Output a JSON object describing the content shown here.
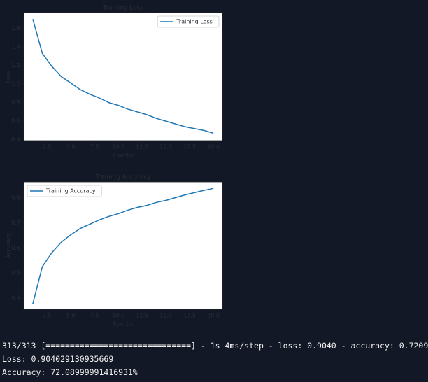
{
  "chart_data": [
    {
      "type": "line",
      "title": "Training Loss",
      "x_label": "Epochs",
      "y_label": "Loss",
      "x": [
        1,
        2,
        3,
        4,
        5,
        6,
        7,
        8,
        9,
        10,
        11,
        12,
        13,
        14,
        15,
        16,
        17,
        18,
        19,
        20
      ],
      "series": [
        {
          "name": "Training Loss",
          "color": "#1f77b4",
          "values": [
            1.7,
            1.33,
            1.19,
            1.08,
            1.01,
            0.94,
            0.89,
            0.85,
            0.8,
            0.77,
            0.73,
            0.7,
            0.67,
            0.63,
            0.6,
            0.57,
            0.54,
            0.52,
            0.5,
            0.47
          ]
        }
      ],
      "xlim": [
        0.05,
        20.95
      ],
      "ylim": [
        0.39,
        1.77
      ],
      "xticks": [
        2.5,
        {
          "value": 5,
          "label": "5.0"
        },
        7.5,
        {
          "value": 10,
          "label": "10.0"
        },
        12.5,
        {
          "value": 15,
          "label": "15.0"
        },
        17.5,
        {
          "value": 20,
          "label": "20.0"
        }
      ],
      "yticks": [
        0.4,
        0.6,
        0.8,
        {
          "value": 1,
          "label": "1.0"
        },
        1.2,
        1.4,
        1.6
      ],
      "legend": "upper right"
    },
    {
      "type": "line",
      "title": "Training Accuracy",
      "x_label": "Epochs",
      "y_label": "Accuracy",
      "x": [
        1,
        2,
        3,
        4,
        5,
        6,
        7,
        8,
        9,
        10,
        11,
        12,
        13,
        14,
        15,
        16,
        17,
        18,
        19,
        20
      ],
      "series": [
        {
          "name": "Training Accuracy",
          "color": "#1f77b4",
          "values": [
            0.377,
            0.525,
            0.581,
            0.623,
            0.653,
            0.678,
            0.695,
            0.712,
            0.726,
            0.737,
            0.751,
            0.762,
            0.77,
            0.782,
            0.79,
            0.801,
            0.812,
            0.821,
            0.83,
            0.838
          ]
        }
      ],
      "xlim": [
        0.05,
        20.95
      ],
      "ylim": [
        0.355,
        0.864
      ],
      "xticks": [
        2.5,
        {
          "value": 5,
          "label": "5.0"
        },
        7.5,
        {
          "value": 10,
          "label": "10.0"
        },
        12.5,
        {
          "value": 15,
          "label": "15.0"
        },
        17.5,
        {
          "value": 20,
          "label": "20.0"
        }
      ],
      "yticks": [
        0.4,
        0.5,
        0.6,
        0.7,
        0.8
      ],
      "legend": "upper left"
    }
  ],
  "output_lines": [
    "313/313 [==============================] - 1s 4ms/step - loss: 0.9040 - accuracy: 0.7209",
    "Loss: 0.904029130935669",
    "Accuracy: 72.08999991416931%"
  ]
}
